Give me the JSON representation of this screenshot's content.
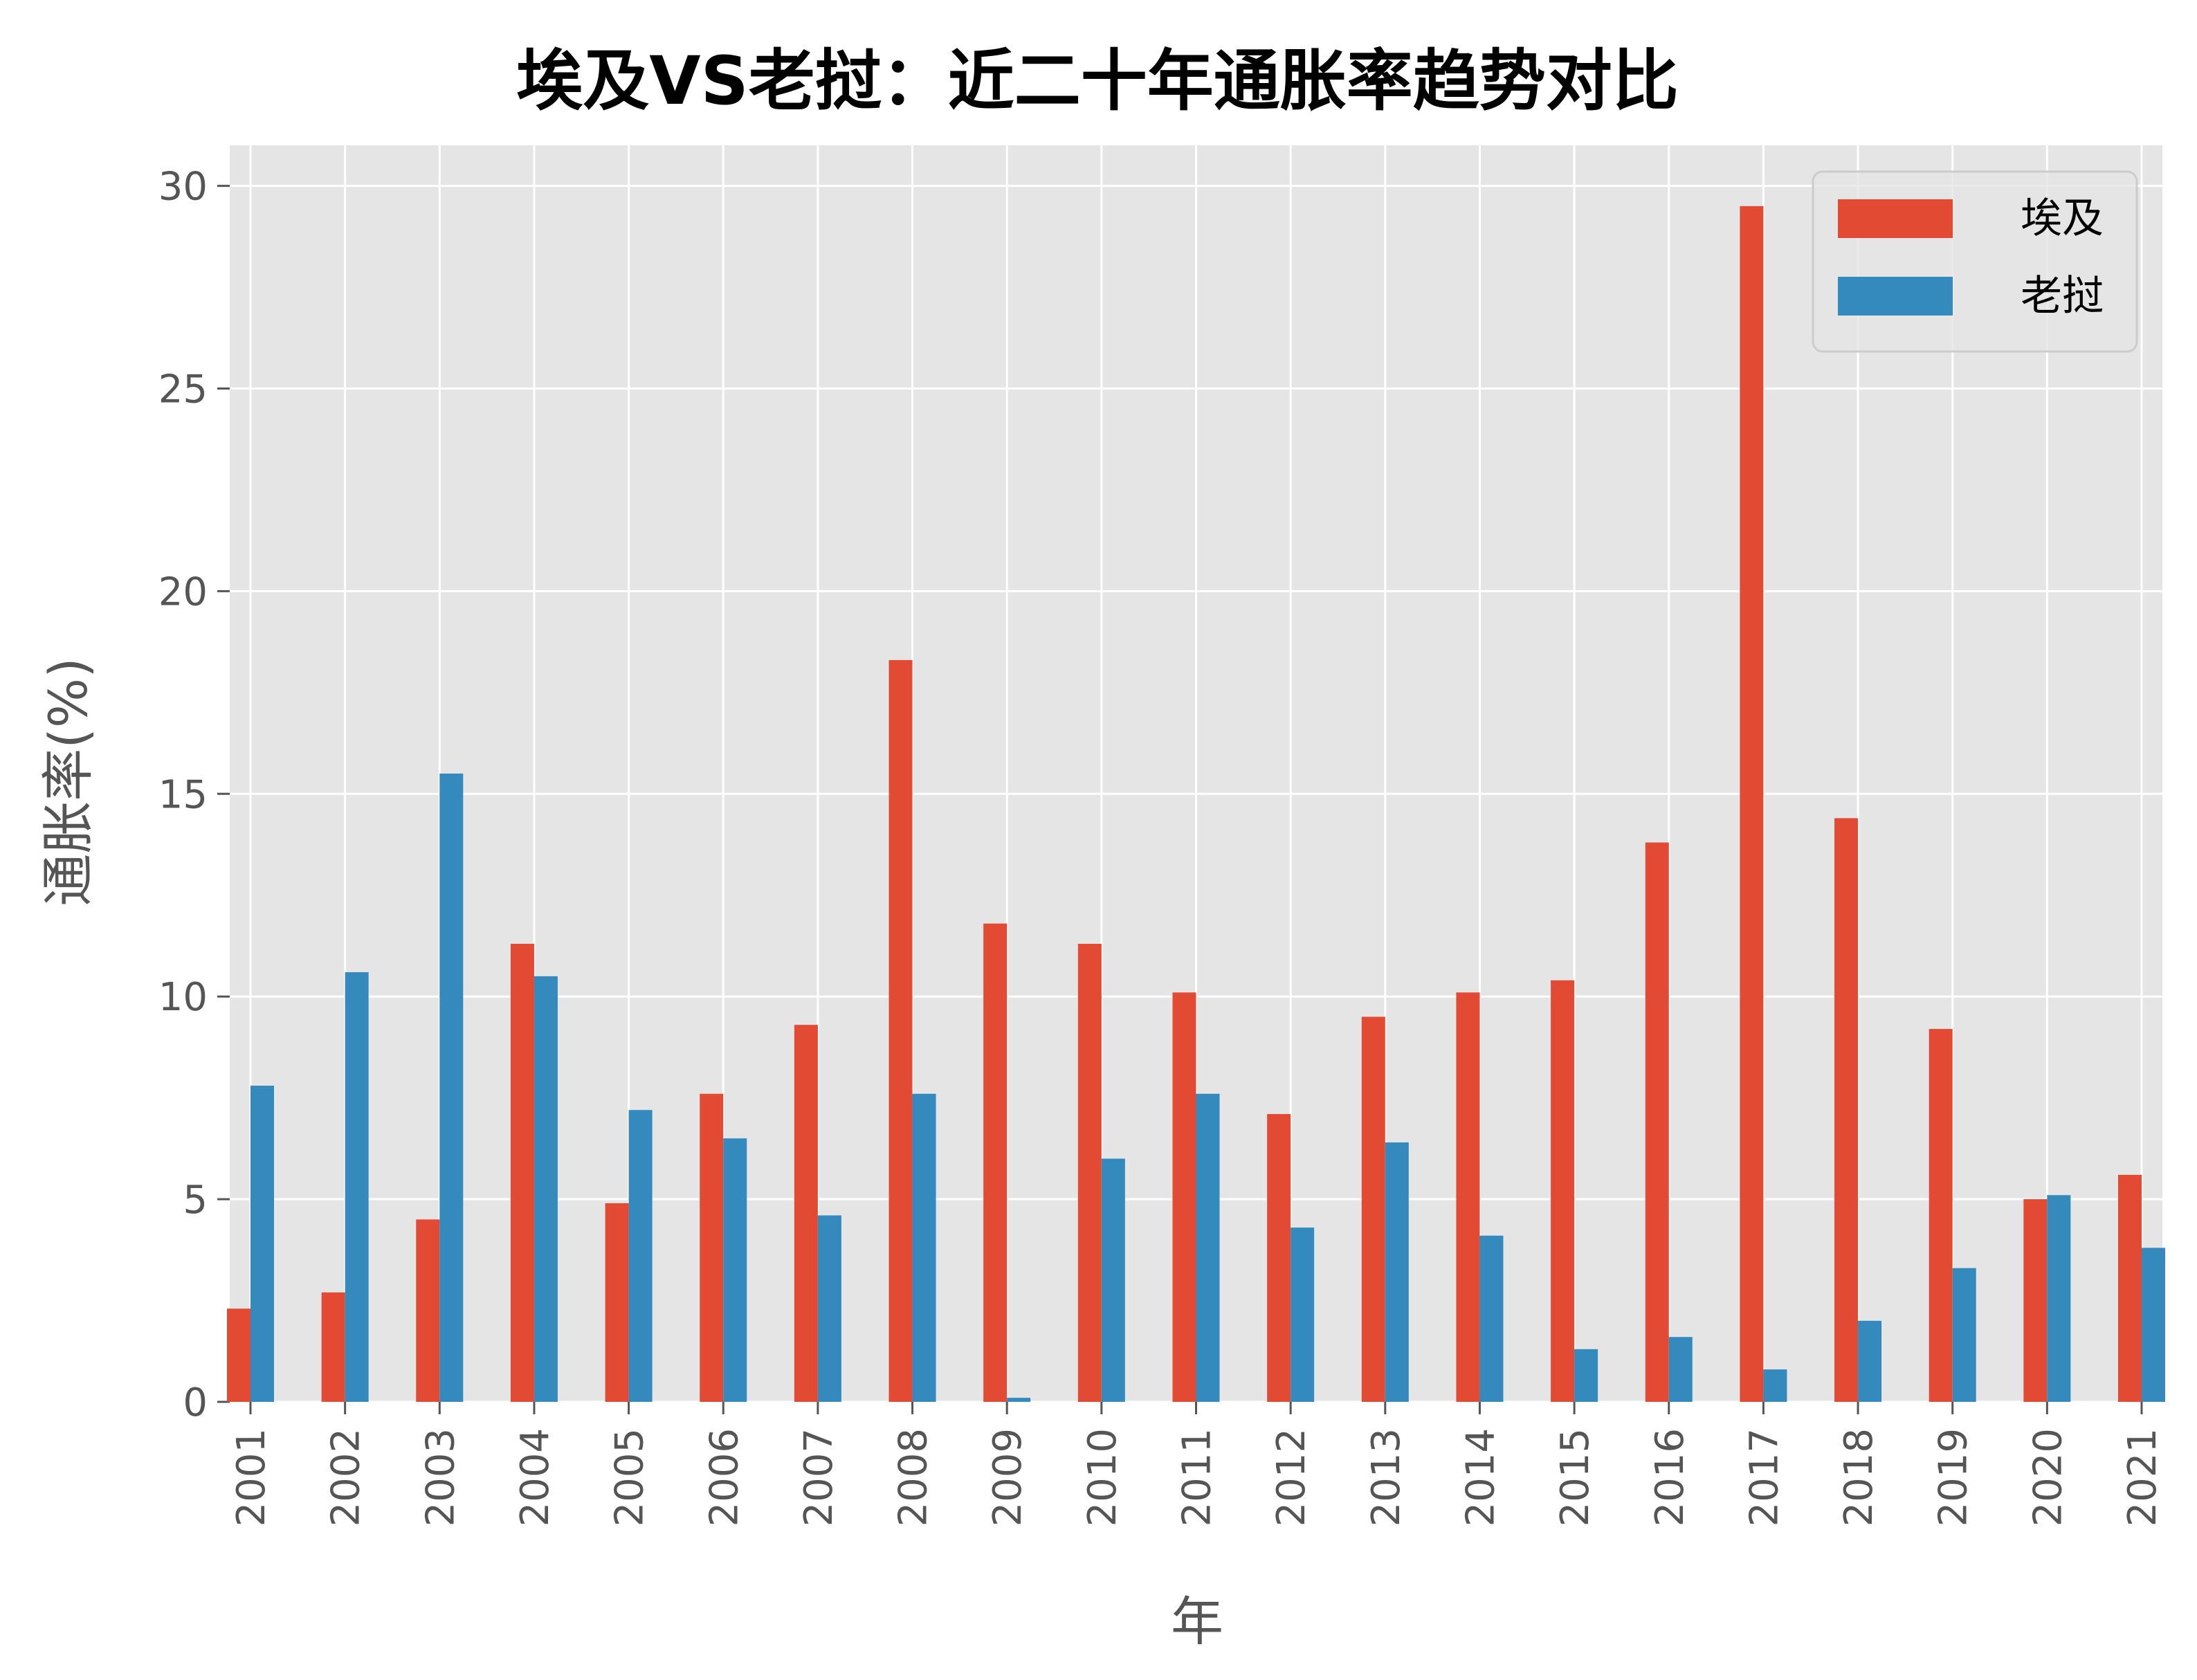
{
  "chart_data": {
    "type": "bar",
    "title": "埃及VS老挝：近二十年通胀率趋势对比",
    "xlabel": "年",
    "ylabel": "通胀率(%)",
    "ylim": [
      0,
      31
    ],
    "yticks": [
      0,
      5,
      10,
      15,
      20,
      25,
      30
    ],
    "grid": true,
    "legend_position": "top-right",
    "background_color": "#e5e5e5",
    "grid_color": "#ffffff",
    "categories": [
      "2001",
      "2002",
      "2003",
      "2004",
      "2005",
      "2006",
      "2007",
      "2008",
      "2009",
      "2010",
      "2011",
      "2012",
      "2013",
      "2014",
      "2015",
      "2016",
      "2017",
      "2018",
      "2019",
      "2020",
      "2021"
    ],
    "series": [
      {
        "name": "埃及",
        "color": "#e24a33",
        "values": [
          2.3,
          2.7,
          4.5,
          11.3,
          4.9,
          7.6,
          9.3,
          18.3,
          11.8,
          11.3,
          10.1,
          7.1,
          9.5,
          10.1,
          10.4,
          13.8,
          29.5,
          14.4,
          9.2,
          5.0,
          5.6
        ]
      },
      {
        "name": "老挝",
        "color": "#348abd",
        "values": [
          7.8,
          10.6,
          15.5,
          10.5,
          7.2,
          6.5,
          4.6,
          7.6,
          0.1,
          6.0,
          7.6,
          4.3,
          6.4,
          4.1,
          1.3,
          1.6,
          0.8,
          2.0,
          3.3,
          5.1,
          3.8
        ]
      }
    ]
  }
}
